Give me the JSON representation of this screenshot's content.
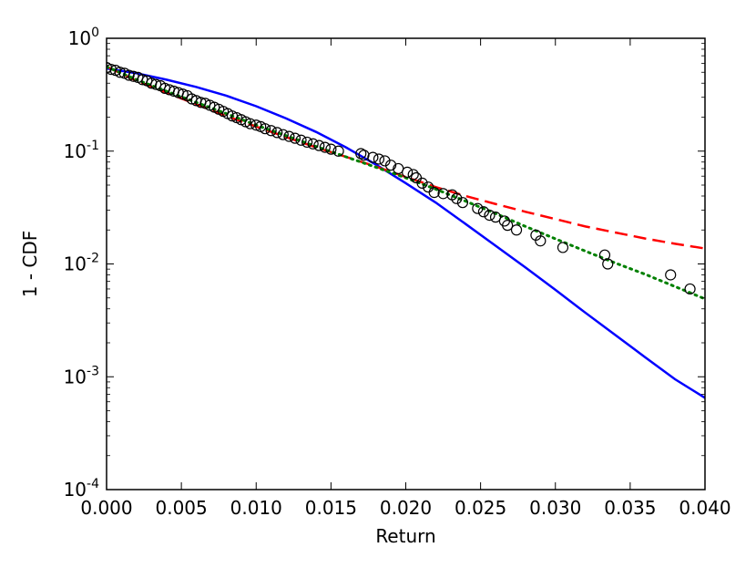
{
  "chart_data": {
    "type": "scatter",
    "title": "",
    "xlabel": "Return",
    "ylabel": "1 - CDF",
    "xlim": [
      0.0,
      0.04
    ],
    "ylim": [
      0.0001,
      1
    ],
    "yscale": "log",
    "grid": false,
    "x_ticks": [
      "0.000",
      "0.005",
      "0.010",
      "0.015",
      "0.020",
      "0.025",
      "0.030",
      "0.035",
      "0.040"
    ],
    "y_ticks": [
      {
        "base": "10",
        "exp": "0"
      },
      {
        "base": "10",
        "exp": "-1"
      },
      {
        "base": "10",
        "exp": "-2"
      },
      {
        "base": "10",
        "exp": "-3"
      },
      {
        "base": "10",
        "exp": "-4"
      }
    ],
    "series": [
      {
        "kind": "markers",
        "marker": "open-circle",
        "color": "#000000",
        "points": [
          [
            0.0,
            0.55
          ],
          [
            0.0003,
            0.53
          ],
          [
            0.0006,
            0.52
          ],
          [
            0.0009,
            0.5
          ],
          [
            0.0012,
            0.49
          ],
          [
            0.0015,
            0.47
          ],
          [
            0.0018,
            0.46
          ],
          [
            0.0021,
            0.45
          ],
          [
            0.0024,
            0.43
          ],
          [
            0.0027,
            0.42
          ],
          [
            0.003,
            0.4
          ],
          [
            0.0033,
            0.39
          ],
          [
            0.0036,
            0.38
          ],
          [
            0.0039,
            0.36
          ],
          [
            0.0042,
            0.35
          ],
          [
            0.0045,
            0.34
          ],
          [
            0.0048,
            0.33
          ],
          [
            0.0051,
            0.32
          ],
          [
            0.0054,
            0.31
          ],
          [
            0.0057,
            0.29
          ],
          [
            0.006,
            0.28
          ],
          [
            0.0063,
            0.27
          ],
          [
            0.0066,
            0.265
          ],
          [
            0.0069,
            0.255
          ],
          [
            0.0072,
            0.245
          ],
          [
            0.0075,
            0.235
          ],
          [
            0.0078,
            0.225
          ],
          [
            0.0081,
            0.215
          ],
          [
            0.0084,
            0.205
          ],
          [
            0.0087,
            0.198
          ],
          [
            0.009,
            0.19
          ],
          [
            0.0093,
            0.182
          ],
          [
            0.0096,
            0.175
          ],
          [
            0.01,
            0.17
          ],
          [
            0.0103,
            0.165
          ],
          [
            0.0106,
            0.158
          ],
          [
            0.011,
            0.152
          ],
          [
            0.0114,
            0.146
          ],
          [
            0.0118,
            0.14
          ],
          [
            0.0122,
            0.135
          ],
          [
            0.0126,
            0.13
          ],
          [
            0.013,
            0.125
          ],
          [
            0.0134,
            0.12
          ],
          [
            0.0138,
            0.116
          ],
          [
            0.0142,
            0.112
          ],
          [
            0.0146,
            0.108
          ],
          [
            0.015,
            0.104
          ],
          [
            0.0155,
            0.1
          ],
          [
            0.017,
            0.095
          ],
          [
            0.0172,
            0.092
          ],
          [
            0.0178,
            0.088
          ],
          [
            0.0182,
            0.085
          ],
          [
            0.0186,
            0.082
          ],
          [
            0.019,
            0.075
          ],
          [
            0.0195,
            0.07
          ],
          [
            0.0201,
            0.065
          ],
          [
            0.0205,
            0.062
          ],
          [
            0.0207,
            0.058
          ],
          [
            0.0211,
            0.052
          ],
          [
            0.0215,
            0.048
          ],
          [
            0.0219,
            0.043
          ],
          [
            0.0225,
            0.042
          ],
          [
            0.0231,
            0.041
          ],
          [
            0.0234,
            0.038
          ],
          [
            0.0238,
            0.035
          ],
          [
            0.0248,
            0.031
          ],
          [
            0.0252,
            0.029
          ],
          [
            0.0256,
            0.027
          ],
          [
            0.026,
            0.026
          ],
          [
            0.0266,
            0.024
          ],
          [
            0.0268,
            0.022
          ],
          [
            0.0274,
            0.02
          ],
          [
            0.0287,
            0.018
          ],
          [
            0.029,
            0.016
          ],
          [
            0.0305,
            0.014
          ],
          [
            0.0333,
            0.012
          ],
          [
            0.0335,
            0.01
          ],
          [
            0.0377,
            0.008
          ],
          [
            0.039,
            0.006
          ]
        ]
      },
      {
        "kind": "line",
        "style": "solid",
        "color": "#0000ff",
        "points": [
          [
            0.0,
            0.54
          ],
          [
            0.002,
            0.49
          ],
          [
            0.004,
            0.43
          ],
          [
            0.006,
            0.37
          ],
          [
            0.008,
            0.31
          ],
          [
            0.01,
            0.25
          ],
          [
            0.012,
            0.195
          ],
          [
            0.014,
            0.148
          ],
          [
            0.016,
            0.108
          ],
          [
            0.018,
            0.076
          ],
          [
            0.02,
            0.052
          ],
          [
            0.022,
            0.035
          ],
          [
            0.024,
            0.0226
          ],
          [
            0.026,
            0.0145
          ],
          [
            0.028,
            0.0093
          ],
          [
            0.03,
            0.0059
          ],
          [
            0.032,
            0.0037
          ],
          [
            0.034,
            0.00235
          ],
          [
            0.036,
            0.00149
          ],
          [
            0.038,
            0.00095
          ],
          [
            0.04,
            0.00065
          ]
        ]
      },
      {
        "kind": "line",
        "style": "dashed",
        "color": "#ff0000",
        "points": [
          [
            0.0,
            0.56
          ],
          [
            0.002,
            0.42
          ],
          [
            0.004,
            0.33
          ],
          [
            0.006,
            0.26
          ],
          [
            0.008,
            0.205
          ],
          [
            0.01,
            0.165
          ],
          [
            0.012,
            0.133
          ],
          [
            0.014,
            0.108
          ],
          [
            0.016,
            0.089
          ],
          [
            0.018,
            0.073
          ],
          [
            0.02,
            0.059
          ],
          [
            0.022,
            0.048
          ],
          [
            0.024,
            0.04
          ],
          [
            0.026,
            0.034
          ],
          [
            0.028,
            0.029
          ],
          [
            0.03,
            0.025
          ],
          [
            0.032,
            0.0215
          ],
          [
            0.034,
            0.019
          ],
          [
            0.036,
            0.0168
          ],
          [
            0.038,
            0.0151
          ],
          [
            0.04,
            0.0137
          ]
        ]
      },
      {
        "kind": "line",
        "style": "dotted",
        "color": "#008000",
        "points": [
          [
            0.0,
            0.56
          ],
          [
            0.002,
            0.43
          ],
          [
            0.004,
            0.34
          ],
          [
            0.006,
            0.27
          ],
          [
            0.008,
            0.215
          ],
          [
            0.01,
            0.17
          ],
          [
            0.012,
            0.137
          ],
          [
            0.014,
            0.11
          ],
          [
            0.016,
            0.089
          ],
          [
            0.018,
            0.072
          ],
          [
            0.02,
            0.058
          ],
          [
            0.022,
            0.046
          ],
          [
            0.024,
            0.036
          ],
          [
            0.026,
            0.028
          ],
          [
            0.028,
            0.0215
          ],
          [
            0.03,
            0.0167
          ],
          [
            0.032,
            0.013
          ],
          [
            0.034,
            0.0102
          ],
          [
            0.036,
            0.0081
          ],
          [
            0.038,
            0.0063
          ],
          [
            0.04,
            0.0049
          ]
        ]
      }
    ]
  }
}
